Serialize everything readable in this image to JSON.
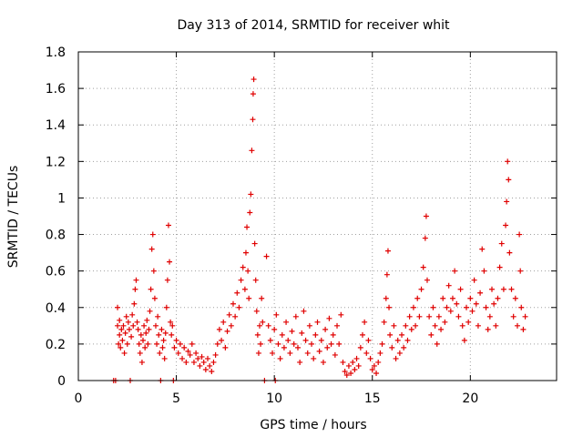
{
  "chart_data": {
    "type": "scatter",
    "title": "Day 313 of 2014, SRMTID for receiver whit",
    "xlabel": "GPS time / hours",
    "ylabel": "SRMTID / TECUs",
    "xlim": [
      0,
      24.4
    ],
    "ylim": [
      0,
      1.8
    ],
    "xticks": [
      0,
      5,
      10,
      15,
      20
    ],
    "yticks": [
      0,
      0.2,
      0.4,
      0.6,
      0.8,
      1,
      1.2,
      1.4,
      1.6,
      1.8
    ],
    "xtick_labels": [
      "0",
      "5",
      "10",
      "15",
      "20"
    ],
    "ytick_labels": [
      "0",
      "0.2",
      "0.4",
      "0.6",
      "0.8",
      "1",
      "1.2",
      "1.4",
      "1.6",
      "1.8"
    ],
    "grid": true,
    "marker": "plus",
    "color": "#e00000",
    "series": [
      {
        "name": "SRMTID",
        "points": [
          [
            1.8,
            0.0
          ],
          [
            1.9,
            0.0
          ],
          [
            2.0,
            0.3
          ],
          [
            2.0,
            0.4
          ],
          [
            2.05,
            0.2
          ],
          [
            2.1,
            0.25
          ],
          [
            2.1,
            0.33
          ],
          [
            2.15,
            0.18
          ],
          [
            2.2,
            0.28
          ],
          [
            2.25,
            0.22
          ],
          [
            2.3,
            0.3
          ],
          [
            2.35,
            0.15
          ],
          [
            2.4,
            0.26
          ],
          [
            2.45,
            0.35
          ],
          [
            2.5,
            0.2
          ],
          [
            2.55,
            0.32
          ],
          [
            2.6,
            0.28
          ],
          [
            2.65,
            0.0
          ],
          [
            2.7,
            0.24
          ],
          [
            2.75,
            0.36
          ],
          [
            2.8,
            0.3
          ],
          [
            2.85,
            0.42
          ],
          [
            2.9,
            0.5
          ],
          [
            2.95,
            0.55
          ],
          [
            3.0,
            0.32
          ],
          [
            3.05,
            0.28
          ],
          [
            3.1,
            0.2
          ],
          [
            3.15,
            0.15
          ],
          [
            3.2,
            0.25
          ],
          [
            3.25,
            0.1
          ],
          [
            3.3,
            0.22
          ],
          [
            3.35,
            0.3
          ],
          [
            3.4,
            0.18
          ],
          [
            3.45,
            0.26
          ],
          [
            3.5,
            0.33
          ],
          [
            3.55,
            0.2
          ],
          [
            3.6,
            0.28
          ],
          [
            3.65,
            0.38
          ],
          [
            3.7,
            0.5
          ],
          [
            3.75,
            0.72
          ],
          [
            3.8,
            0.8
          ],
          [
            3.85,
            0.6
          ],
          [
            3.9,
            0.45
          ],
          [
            3.95,
            0.3
          ],
          [
            4.0,
            0.2
          ],
          [
            4.05,
            0.35
          ],
          [
            4.1,
            0.25
          ],
          [
            4.15,
            0.15
          ],
          [
            4.2,
            0.0
          ],
          [
            4.25,
            0.28
          ],
          [
            4.3,
            0.18
          ],
          [
            4.35,
            0.22
          ],
          [
            4.4,
            0.12
          ],
          [
            4.45,
            0.26
          ],
          [
            4.5,
            0.4
          ],
          [
            4.55,
            0.55
          ],
          [
            4.6,
            0.85
          ],
          [
            4.65,
            0.65
          ],
          [
            4.7,
            0.32
          ],
          [
            4.75,
            0.25
          ],
          [
            4.8,
            0.3
          ],
          [
            4.85,
            0.0
          ],
          [
            4.9,
            0.18
          ],
          [
            5.0,
            0.22
          ],
          [
            5.1,
            0.15
          ],
          [
            5.2,
            0.2
          ],
          [
            5.3,
            0.12
          ],
          [
            5.4,
            0.18
          ],
          [
            5.5,
            0.1
          ],
          [
            5.6,
            0.16
          ],
          [
            5.7,
            0.14
          ],
          [
            5.8,
            0.2
          ],
          [
            5.9,
            0.1
          ],
          [
            6.0,
            0.15
          ],
          [
            6.1,
            0.12
          ],
          [
            6.2,
            0.08
          ],
          [
            6.3,
            0.13
          ],
          [
            6.4,
            0.1
          ],
          [
            6.5,
            0.06
          ],
          [
            6.6,
            0.12
          ],
          [
            6.7,
            0.08
          ],
          [
            6.8,
            0.05
          ],
          [
            6.9,
            0.1
          ],
          [
            7.0,
            0.14
          ],
          [
            7.1,
            0.2
          ],
          [
            7.2,
            0.28
          ],
          [
            7.3,
            0.22
          ],
          [
            7.4,
            0.32
          ],
          [
            7.5,
            0.18
          ],
          [
            7.6,
            0.27
          ],
          [
            7.7,
            0.36
          ],
          [
            7.8,
            0.3
          ],
          [
            7.9,
            0.42
          ],
          [
            8.0,
            0.35
          ],
          [
            8.1,
            0.48
          ],
          [
            8.2,
            0.4
          ],
          [
            8.3,
            0.55
          ],
          [
            8.4,
            0.62
          ],
          [
            8.5,
            0.5
          ],
          [
            8.55,
            0.7
          ],
          [
            8.6,
            0.84
          ],
          [
            8.65,
            0.6
          ],
          [
            8.7,
            0.45
          ],
          [
            8.75,
            0.92
          ],
          [
            8.8,
            1.02
          ],
          [
            8.85,
            1.26
          ],
          [
            8.9,
            1.43
          ],
          [
            8.92,
            1.57
          ],
          [
            8.95,
            1.65
          ],
          [
            9.0,
            0.75
          ],
          [
            9.05,
            0.55
          ],
          [
            9.1,
            0.38
          ],
          [
            9.15,
            0.25
          ],
          [
            9.2,
            0.15
          ],
          [
            9.25,
            0.3
          ],
          [
            9.3,
            0.2
          ],
          [
            9.35,
            0.45
          ],
          [
            9.4,
            0.32
          ],
          [
            9.5,
            0.0
          ],
          [
            9.6,
            0.68
          ],
          [
            9.7,
            0.3
          ],
          [
            9.8,
            0.22
          ],
          [
            9.9,
            0.15
          ],
          [
            10.0,
            0.28
          ],
          [
            10.05,
            0.0
          ],
          [
            10.1,
            0.36
          ],
          [
            10.2,
            0.2
          ],
          [
            10.3,
            0.12
          ],
          [
            10.4,
            0.25
          ],
          [
            10.5,
            0.18
          ],
          [
            10.6,
            0.32
          ],
          [
            10.7,
            0.22
          ],
          [
            10.8,
            0.15
          ],
          [
            10.9,
            0.27
          ],
          [
            11.0,
            0.2
          ],
          [
            11.1,
            0.35
          ],
          [
            11.2,
            0.18
          ],
          [
            11.3,
            0.1
          ],
          [
            11.4,
            0.26
          ],
          [
            11.5,
            0.38
          ],
          [
            11.6,
            0.22
          ],
          [
            11.7,
            0.15
          ],
          [
            11.8,
            0.3
          ],
          [
            11.9,
            0.2
          ],
          [
            12.0,
            0.12
          ],
          [
            12.1,
            0.25
          ],
          [
            12.2,
            0.32
          ],
          [
            12.3,
            0.16
          ],
          [
            12.4,
            0.22
          ],
          [
            12.5,
            0.1
          ],
          [
            12.6,
            0.28
          ],
          [
            12.7,
            0.18
          ],
          [
            12.8,
            0.34
          ],
          [
            12.9,
            0.2
          ],
          [
            13.0,
            0.25
          ],
          [
            13.1,
            0.14
          ],
          [
            13.2,
            0.3
          ],
          [
            13.3,
            0.2
          ],
          [
            13.4,
            0.36
          ],
          [
            13.5,
            0.1
          ],
          [
            13.6,
            0.05
          ],
          [
            13.7,
            0.03
          ],
          [
            13.8,
            0.08
          ],
          [
            13.9,
            0.04
          ],
          [
            14.0,
            0.1
          ],
          [
            14.1,
            0.06
          ],
          [
            14.2,
            0.12
          ],
          [
            14.3,
            0.08
          ],
          [
            14.4,
            0.18
          ],
          [
            14.5,
            0.25
          ],
          [
            14.6,
            0.32
          ],
          [
            14.7,
            0.15
          ],
          [
            14.8,
            0.22
          ],
          [
            14.9,
            0.12
          ],
          [
            15.0,
            0.06
          ],
          [
            15.1,
            0.08
          ],
          [
            15.2,
            0.04
          ],
          [
            15.3,
            0.1
          ],
          [
            15.4,
            0.15
          ],
          [
            15.5,
            0.2
          ],
          [
            15.6,
            0.32
          ],
          [
            15.7,
            0.45
          ],
          [
            15.75,
            0.58
          ],
          [
            15.8,
            0.71
          ],
          [
            15.85,
            0.4
          ],
          [
            15.9,
            0.25
          ],
          [
            16.0,
            0.18
          ],
          [
            16.1,
            0.3
          ],
          [
            16.2,
            0.12
          ],
          [
            16.3,
            0.22
          ],
          [
            16.4,
            0.15
          ],
          [
            16.5,
            0.25
          ],
          [
            16.6,
            0.18
          ],
          [
            16.7,
            0.3
          ],
          [
            16.8,
            0.22
          ],
          [
            16.9,
            0.35
          ],
          [
            17.0,
            0.28
          ],
          [
            17.1,
            0.4
          ],
          [
            17.2,
            0.3
          ],
          [
            17.3,
            0.45
          ],
          [
            17.4,
            0.35
          ],
          [
            17.5,
            0.5
          ],
          [
            17.6,
            0.62
          ],
          [
            17.7,
            0.78
          ],
          [
            17.75,
            0.9
          ],
          [
            17.8,
            0.55
          ],
          [
            17.9,
            0.35
          ],
          [
            18.0,
            0.25
          ],
          [
            18.1,
            0.4
          ],
          [
            18.2,
            0.3
          ],
          [
            18.3,
            0.2
          ],
          [
            18.4,
            0.35
          ],
          [
            18.5,
            0.28
          ],
          [
            18.6,
            0.45
          ],
          [
            18.7,
            0.32
          ],
          [
            18.8,
            0.4
          ],
          [
            18.9,
            0.52
          ],
          [
            19.0,
            0.38
          ],
          [
            19.1,
            0.45
          ],
          [
            19.2,
            0.6
          ],
          [
            19.3,
            0.42
          ],
          [
            19.4,
            0.35
          ],
          [
            19.5,
            0.5
          ],
          [
            19.6,
            0.3
          ],
          [
            19.7,
            0.22
          ],
          [
            19.8,
            0.4
          ],
          [
            19.9,
            0.32
          ],
          [
            20.0,
            0.45
          ],
          [
            20.1,
            0.38
          ],
          [
            20.2,
            0.55
          ],
          [
            20.3,
            0.42
          ],
          [
            20.4,
            0.3
          ],
          [
            20.5,
            0.48
          ],
          [
            20.6,
            0.72
          ],
          [
            20.7,
            0.6
          ],
          [
            20.8,
            0.4
          ],
          [
            20.9,
            0.28
          ],
          [
            21.0,
            0.35
          ],
          [
            21.1,
            0.5
          ],
          [
            21.2,
            0.42
          ],
          [
            21.3,
            0.3
          ],
          [
            21.4,
            0.45
          ],
          [
            21.5,
            0.62
          ],
          [
            21.6,
            0.75
          ],
          [
            21.7,
            0.5
          ],
          [
            21.8,
            0.85
          ],
          [
            21.85,
            0.98
          ],
          [
            21.9,
            1.2
          ],
          [
            21.95,
            1.1
          ],
          [
            22.0,
            0.7
          ],
          [
            22.1,
            0.5
          ],
          [
            22.2,
            0.35
          ],
          [
            22.3,
            0.45
          ],
          [
            22.4,
            0.3
          ],
          [
            22.5,
            0.8
          ],
          [
            22.55,
            0.6
          ],
          [
            22.6,
            0.4
          ],
          [
            22.7,
            0.28
          ],
          [
            22.8,
            0.35
          ]
        ]
      }
    ]
  }
}
